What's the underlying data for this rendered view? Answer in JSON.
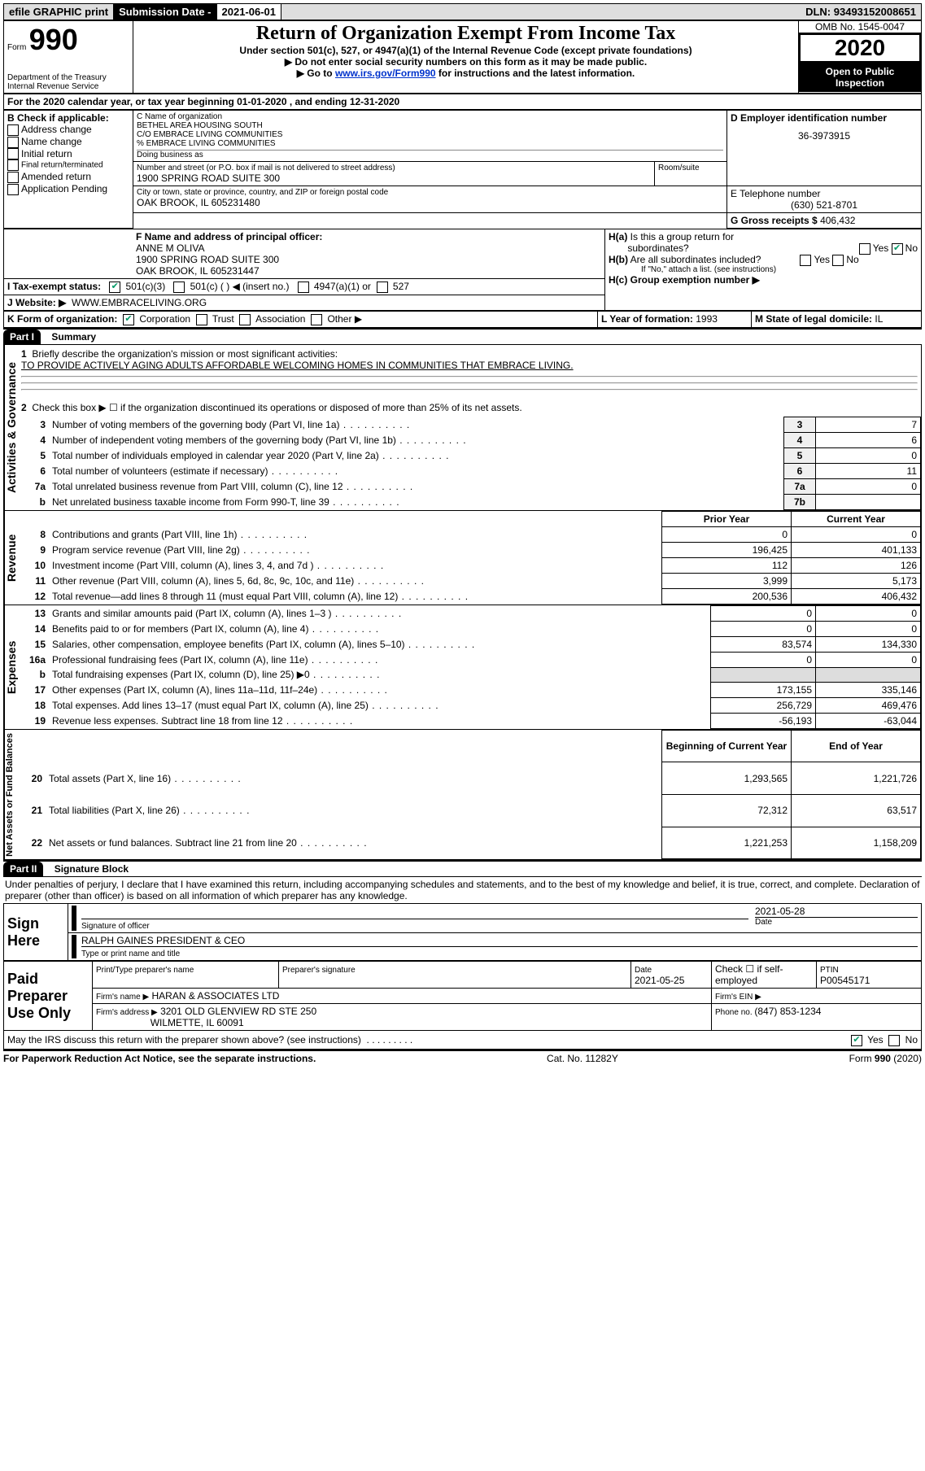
{
  "topbar": {
    "efile": "efile GRAPHIC print",
    "subdate_label": "Submission Date - ",
    "subdate": "2021-06-01",
    "dln_label": "DLN: ",
    "dln": "93493152008651"
  },
  "header": {
    "form_label": "Form",
    "form_num": "990",
    "dept": "Department of the Treasury\nInternal Revenue Service",
    "title": "Return of Organization Exempt From Income Tax",
    "subtitle": "Under section 501(c), 527, or 4947(a)(1) of the Internal Revenue Code (except private foundations)",
    "note1": "Do not enter social security numbers on this form as it may be made public.",
    "note2_pre": "Go to ",
    "note2_link": "www.irs.gov/Form990",
    "note2_post": " for instructions and the latest information.",
    "omb": "OMB No. 1545-0047",
    "year": "2020",
    "open": "Open to Public Inspection"
  },
  "line_a": "For the 2020 calendar year, or tax year beginning 01-01-2020    , and ending 12-31-2020",
  "box_b": {
    "label": "B Check if applicable:",
    "opts": [
      "Address change",
      "Name change",
      "Initial return",
      "Final return/terminated",
      "Amended return",
      "Application Pending"
    ]
  },
  "box_c": {
    "label": "C Name of organization",
    "lines": [
      "BETHEL AREA HOUSING SOUTH",
      "C/O EMBRACE LIVING COMMUNITIES",
      "% EMBRACE LIVING COMMUNITIES"
    ],
    "dba": "Doing business as",
    "addr_label": "Number and street (or P.O. box if mail is not delivered to street address)",
    "room": "Room/suite",
    "addr": "1900 SPRING ROAD SUITE 300",
    "city_label": "City or town, state or province, country, and ZIP or foreign postal code",
    "city": "OAK BROOK, IL  605231480"
  },
  "box_d": {
    "label": "D Employer identification number",
    "val": "36-3973915"
  },
  "box_e": {
    "label": "E Telephone number",
    "val": "(630) 521-8701"
  },
  "box_g": {
    "label": "G Gross receipts $ ",
    "val": "406,432"
  },
  "box_f": {
    "label": "F Name and address of principal officer:",
    "name": "ANNE M OLIVA",
    "addr": "1900 SPRING ROAD SUITE 300",
    "city": "OAK BROOK, IL  605231447"
  },
  "box_h": {
    "a_label": "H(a)  Is this a group return for subordinates?",
    "b_label": "H(b)  Are all subordinates included?",
    "b_note": "If \"No,\" attach a list. (see instructions)",
    "c_label": "H(c)  Group exemption number ▶",
    "yes": "Yes",
    "no": "No"
  },
  "box_i": {
    "label": "I  Tax-exempt status:",
    "opt1": "501(c)(3)",
    "opt2": "501(c) (  ) ◀ (insert no.)",
    "opt3": "4947(a)(1) or",
    "opt4": "527"
  },
  "box_j": {
    "label": "J    Website: ▶",
    "val": "WWW.EMBRACELIVING.ORG"
  },
  "box_k": {
    "label": "K Form of organization:",
    "opts": [
      "Corporation",
      "Trust",
      "Association",
      "Other ▶"
    ]
  },
  "box_l": {
    "label": "L Year of formation: ",
    "val": "1993"
  },
  "box_m": {
    "label": "M State of legal domicile: ",
    "val": "IL"
  },
  "parts": {
    "p1_label": "Part I",
    "p1_title": "Summary",
    "p2_label": "Part II",
    "p2_title": "Signature Block"
  },
  "gov": {
    "q1": "Briefly describe the organization's mission or most significant activities:",
    "q1_ans": "TO PROVIDE ACTIVELY AGING ADULTS AFFORDABLE WELCOMING HOMES IN COMMUNITIES THAT EMBRACE LIVING.",
    "q2": "Check this box ▶ ☐  if the organization discontinued its operations or disposed of more than 25% of its net assets.",
    "rows": [
      {
        "n": "3",
        "t": "Number of voting members of the governing body (Part VI, line 1a)",
        "k": "3",
        "v": "7"
      },
      {
        "n": "4",
        "t": "Number of independent voting members of the governing body (Part VI, line 1b)",
        "k": "4",
        "v": "6"
      },
      {
        "n": "5",
        "t": "Total number of individuals employed in calendar year 2020 (Part V, line 2a)",
        "k": "5",
        "v": "0"
      },
      {
        "n": "6",
        "t": "Total number of volunteers (estimate if necessary)",
        "k": "6",
        "v": "11"
      },
      {
        "n": "7a",
        "t": "Total unrelated business revenue from Part VIII, column (C), line 12",
        "k": "7a",
        "v": "0"
      },
      {
        "n": "b",
        "t": "Net unrelated business taxable income from Form 990-T, line 39",
        "k": "7b",
        "v": ""
      }
    ],
    "side_label": "Activities & Governance"
  },
  "rev": {
    "side_label": "Revenue",
    "h1": "Prior Year",
    "h2": "Current Year",
    "rows": [
      {
        "n": "8",
        "t": "Contributions and grants (Part VIII, line 1h)",
        "p": "0",
        "c": "0"
      },
      {
        "n": "9",
        "t": "Program service revenue (Part VIII, line 2g)",
        "p": "196,425",
        "c": "401,133"
      },
      {
        "n": "10",
        "t": "Investment income (Part VIII, column (A), lines 3, 4, and 7d )",
        "p": "112",
        "c": "126"
      },
      {
        "n": "11",
        "t": "Other revenue (Part VIII, column (A), lines 5, 6d, 8c, 9c, 10c, and 11e)",
        "p": "3,999",
        "c": "5,173"
      },
      {
        "n": "12",
        "t": "Total revenue—add lines 8 through 11 (must equal Part VIII, column (A), line 12)",
        "p": "200,536",
        "c": "406,432"
      }
    ]
  },
  "exp": {
    "side_label": "Expenses",
    "rows": [
      {
        "n": "13",
        "t": "Grants and similar amounts paid (Part IX, column (A), lines 1–3 )",
        "p": "0",
        "c": "0"
      },
      {
        "n": "14",
        "t": "Benefits paid to or for members (Part IX, column (A), line 4)",
        "p": "0",
        "c": "0"
      },
      {
        "n": "15",
        "t": "Salaries, other compensation, employee benefits (Part IX, column (A), lines 5–10)",
        "p": "83,574",
        "c": "134,330"
      },
      {
        "n": "16a",
        "t": "Professional fundraising fees (Part IX, column (A), line 11e)",
        "p": "0",
        "c": "0"
      },
      {
        "n": "b",
        "t": "Total fundraising expenses (Part IX, column (D), line 25) ▶0",
        "p": "",
        "c": ""
      },
      {
        "n": "17",
        "t": "Other expenses (Part IX, column (A), lines 11a–11d, 11f–24e)",
        "p": "173,155",
        "c": "335,146"
      },
      {
        "n": "18",
        "t": "Total expenses. Add lines 13–17 (must equal Part IX, column (A), line 25)",
        "p": "256,729",
        "c": "469,476"
      },
      {
        "n": "19",
        "t": "Revenue less expenses. Subtract line 18 from line 12",
        "p": "-56,193",
        "c": "-63,044"
      }
    ]
  },
  "net": {
    "side_label": "Net Assets or Fund Balances",
    "h1": "Beginning of Current Year",
    "h2": "End of Year",
    "rows": [
      {
        "n": "20",
        "t": "Total assets (Part X, line 16)",
        "p": "1,293,565",
        "c": "1,221,726"
      },
      {
        "n": "21",
        "t": "Total liabilities (Part X, line 26)",
        "p": "72,312",
        "c": "63,517"
      },
      {
        "n": "22",
        "t": "Net assets or fund balances. Subtract line 21 from line 20",
        "p": "1,221,253",
        "c": "1,158,209"
      }
    ]
  },
  "sig": {
    "perjury": "Under penalties of perjury, I declare that I have examined this return, including accompanying schedules and statements, and to the best of my knowledge and belief, it is true, correct, and complete. Declaration of preparer (other than officer) is based on all information of which preparer has any knowledge.",
    "sign_here": "Sign Here",
    "sig_officer": "Signature of officer",
    "date_l": "Date",
    "date_v": "2021-05-28",
    "name": "RALPH GAINES  PRESIDENT & CEO",
    "name_l": "Type or print name and title",
    "paid": "Paid Preparer Use Only",
    "prep_name_l": "Print/Type preparer's name",
    "prep_sig_l": "Preparer's signature",
    "prep_date_l": "Date",
    "prep_date_v": "2021-05-25",
    "check_self": "Check ☐ if self-employed",
    "ptin_l": "PTIN",
    "ptin_v": "P00545171",
    "firm_name_l": "Firm's name    ▶",
    "firm_name_v": "HARAN & ASSOCIATES LTD",
    "firm_ein_l": "Firm's EIN ▶",
    "firm_addr_l": "Firm's address ▶",
    "firm_addr_v1": "3201 OLD GLENVIEW RD STE 250",
    "firm_addr_v2": "WILMETTE, IL  60091",
    "phone_l": "Phone no. ",
    "phone_v": "(847) 853-1234",
    "discuss": "May the IRS discuss this return with the preparer shown above? (see instructions)"
  },
  "footer": {
    "pra": "For Paperwork Reduction Act Notice, see the separate instructions.",
    "cat": "Cat. No. 11282Y",
    "form": "Form 990 (2020)"
  }
}
